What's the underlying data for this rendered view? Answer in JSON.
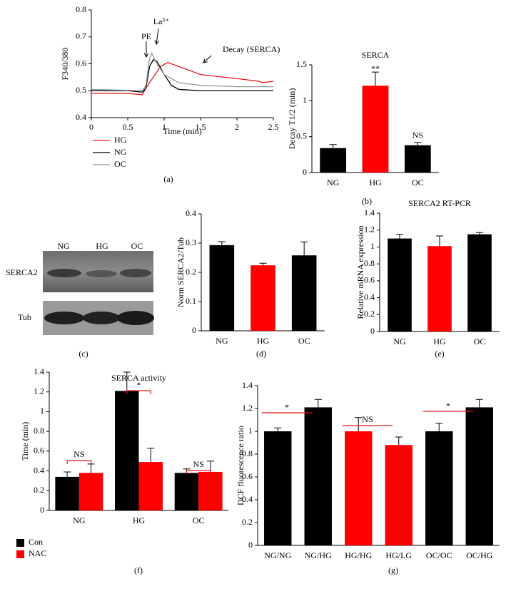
{
  "chart_data": [
    {
      "type": "line",
      "x_label": "Time (min)",
      "y_label": "F340/380",
      "panel_label": "(a)",
      "xlim": [
        0,
        2.5
      ],
      "xticks": [
        0,
        0.5,
        1,
        1.5,
        2,
        2.5
      ],
      "ylim": [
        0.4,
        0.8
      ],
      "yticks": [
        0.4,
        0.5,
        0.6,
        0.7,
        0.8
      ],
      "annotations": [
        "PE",
        "La³⁺",
        "Decay (SERCA)"
      ],
      "series": [
        {
          "name": "HG",
          "color": "#e8171f",
          "x": [
            0,
            0.5,
            0.7,
            0.75,
            0.85,
            0.95,
            1.05,
            1.2,
            1.5,
            2.0,
            2.3,
            2.35,
            2.5
          ],
          "values": [
            0.49,
            0.49,
            0.485,
            0.51,
            0.55,
            0.59,
            0.605,
            0.59,
            0.56,
            0.545,
            0.535,
            0.53,
            0.535
          ]
        },
        {
          "name": "NG",
          "color": "#000000",
          "x": [
            0,
            0.5,
            0.7,
            0.75,
            0.8,
            0.85,
            0.9,
            1.0,
            1.1,
            1.2,
            1.5,
            2.0,
            2.5
          ],
          "values": [
            0.5,
            0.5,
            0.495,
            0.51,
            0.59,
            0.615,
            0.61,
            0.56,
            0.52,
            0.505,
            0.5,
            0.5,
            0.5
          ]
        },
        {
          "name": "OC",
          "color": "#999999",
          "x": [
            0,
            0.7,
            0.75,
            0.8,
            0.83,
            0.9,
            1.0,
            1.2,
            1.5,
            2.0,
            2.5
          ],
          "values": [
            0.505,
            0.5,
            0.52,
            0.62,
            0.64,
            0.6,
            0.56,
            0.53,
            0.52,
            0.515,
            0.515
          ]
        }
      ]
    },
    {
      "type": "bar",
      "title": "SERCA",
      "y_label": "Decay T1/2 (min)",
      "panel_label": "(b)",
      "ylim": [
        0,
        1.5
      ],
      "yticks": [
        0,
        0.5,
        1,
        1.5
      ],
      "categories": [
        "NG",
        "HG",
        "OC"
      ],
      "values": [
        0.34,
        1.21,
        0.38
      ],
      "errors": [
        0.05,
        0.19,
        0.04
      ],
      "colors": [
        "#000000",
        "#ff0000",
        "#000000"
      ],
      "annotations": [
        "**",
        "NS"
      ]
    },
    {
      "type": "bar",
      "y_label": "Norm SERCA2/Tub",
      "panel_label": "(d)",
      "ylim": [
        0,
        0.4
      ],
      "yticks": [
        0,
        0.1,
        0.2,
        0.3,
        0.4
      ],
      "categories": [
        "NG",
        "HG",
        "OC"
      ],
      "values": [
        0.293,
        0.224,
        0.258
      ],
      "errors": [
        0.012,
        0.007,
        0.046
      ],
      "colors": [
        "#000000",
        "#ff0000",
        "#000000"
      ]
    },
    {
      "type": "bar",
      "title": "SERCA2 RT-PCR",
      "y_label": "Relative mRNA expression",
      "panel_label": "(e)",
      "ylim": [
        0,
        1.4
      ],
      "yticks": [
        0,
        0.2,
        0.4,
        0.6,
        0.8,
        1,
        1.2,
        1.4
      ],
      "categories": [
        "NG",
        "HG",
        "OC"
      ],
      "values": [
        1.1,
        1.01,
        1.15
      ],
      "errors": [
        0.05,
        0.12,
        0.02
      ],
      "colors": [
        "#000000",
        "#ff0000",
        "#000000"
      ]
    },
    {
      "type": "grouped_bar",
      "title": "SERCA activity",
      "y_label": "Time (min)",
      "panel_label": "(f)",
      "ylim": [
        0,
        1.4
      ],
      "yticks": [
        0,
        0.2,
        0.4,
        0.6,
        0.8,
        1,
        1.2,
        1.4
      ],
      "categories": [
        "NG",
        "HG",
        "OC"
      ],
      "series": [
        {
          "name": "Con",
          "color": "#000000",
          "values": [
            0.34,
            1.21,
            0.38
          ],
          "errors": [
            0.05,
            0.19,
            0.04
          ]
        },
        {
          "name": "NAC",
          "color": "#ff0000",
          "values": [
            0.38,
            0.49,
            0.39
          ],
          "errors": [
            0.09,
            0.14,
            0.11
          ]
        }
      ],
      "annotations": [
        "NS",
        "*",
        "NS"
      ]
    },
    {
      "type": "bar",
      "y_label": "DCF fluorescence ratio",
      "panel_label": "(g)",
      "ylim": [
        0,
        1.4
      ],
      "yticks": [
        0,
        0.2,
        0.4,
        0.6,
        0.8,
        1,
        1.2,
        1.4
      ],
      "categories": [
        "NG/NG",
        "NG/HG",
        "HG/HG",
        "HG/LG",
        "OC/OC",
        "OC/HG"
      ],
      "values": [
        1.0,
        1.21,
        1.0,
        0.88,
        1.0,
        1.21
      ],
      "errors": [
        0.03,
        0.07,
        0.12,
        0.07,
        0.07,
        0.07
      ],
      "colors": [
        "#000000",
        "#000000",
        "#ff0000",
        "#ff0000",
        "#000000",
        "#000000"
      ],
      "annotations": [
        "*",
        "NS",
        "*"
      ]
    }
  ],
  "blot": {
    "lanes": [
      "NG",
      "HG",
      "OC"
    ],
    "rows": [
      "SERCA2",
      "Tub"
    ],
    "panel_label": "(c)"
  }
}
